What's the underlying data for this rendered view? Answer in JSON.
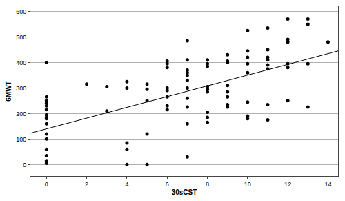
{
  "chart_data": {
    "type": "scatter",
    "x_label": "30sCST",
    "y_label": "6MWT",
    "color": "#000000",
    "marker": "circle",
    "grid": "y",
    "xlim": [
      -0.8,
      14.5
    ],
    "ylim": [
      -45,
      620
    ],
    "xticks": [
      0,
      2,
      4,
      6,
      8,
      10,
      12,
      14
    ],
    "yticks": [
      0,
      100,
      200,
      300,
      400,
      500,
      600
    ],
    "x": [
      0,
      0,
      0,
      0,
      0,
      0,
      0,
      0,
      0,
      0,
      0,
      0,
      0,
      0,
      0,
      0,
      2,
      3,
      3,
      4,
      4,
      4,
      4,
      4,
      5,
      5,
      5,
      5,
      5,
      6,
      6,
      6,
      6,
      6,
      6,
      6,
      6,
      7,
      7,
      7,
      7,
      7,
      7,
      7,
      7,
      7,
      7,
      7,
      8,
      8,
      8,
      8,
      8,
      8,
      8,
      8,
      8,
      9,
      9,
      9,
      9,
      9,
      9,
      9,
      9,
      10,
      10,
      10,
      10,
      10,
      10,
      10,
      10,
      11,
      11,
      11,
      11,
      11,
      11,
      11,
      11,
      12,
      12,
      12,
      12,
      12,
      12,
      13,
      13,
      13,
      13,
      14
    ],
    "values": [
      400,
      265,
      250,
      240,
      230,
      215,
      195,
      185,
      180,
      160,
      120,
      100,
      60,
      35,
      15,
      5,
      315,
      305,
      210,
      325,
      300,
      85,
      60,
      0,
      315,
      295,
      250,
      120,
      0,
      405,
      395,
      380,
      300,
      290,
      265,
      230,
      215,
      485,
      410,
      370,
      360,
      350,
      330,
      300,
      260,
      225,
      160,
      30,
      410,
      395,
      385,
      305,
      295,
      285,
      205,
      185,
      165,
      430,
      405,
      400,
      310,
      285,
      265,
      235,
      225,
      525,
      445,
      420,
      395,
      360,
      245,
      190,
      180,
      535,
      450,
      420,
      410,
      390,
      375,
      235,
      175,
      570,
      490,
      480,
      395,
      380,
      250,
      570,
      550,
      395,
      225,
      480
    ],
    "fit": {
      "x": [
        -0.8,
        14.5
      ],
      "values": [
        123,
        445
      ],
      "color": "#000000",
      "line_style": "solid"
    }
  }
}
